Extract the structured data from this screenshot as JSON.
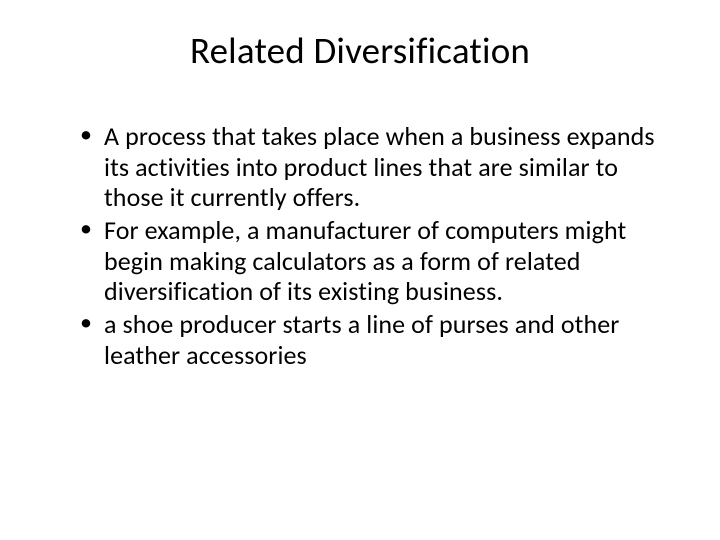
{
  "slide": {
    "title": "Related Diversification",
    "bullets": [
      "A process that takes place when a business expands its activities into product lines that are similar to those it currently offers.",
      "For example, a manufacturer of computers might begin making calculators as a form of related diversification of its existing business.",
      "a shoe producer starts a line of purses and other leather accessories"
    ],
    "colors": {
      "background": "#ffffff",
      "text": "#000000"
    },
    "title_fontsize": 37,
    "body_fontsize": 26
  }
}
